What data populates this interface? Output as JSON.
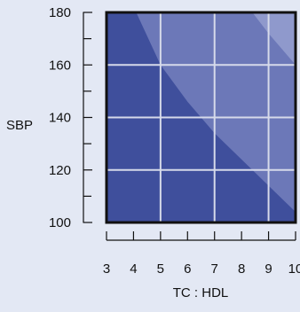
{
  "chart_data": {
    "type": "heatmap",
    "title": "",
    "xlabel": "TC : HDL",
    "ylabel": "SBP",
    "xlim": [
      3,
      10
    ],
    "ylim": [
      100,
      180
    ],
    "x_ticks": [
      3,
      4,
      5,
      6,
      7,
      8,
      9,
      10
    ],
    "x_tick_labels": [
      "3",
      "4",
      "5",
      "6",
      "7",
      "8",
      "9",
      "10"
    ],
    "y_ticks": [
      100,
      120,
      140,
      160,
      180
    ],
    "y_tick_labels": [
      "100",
      "120",
      "140",
      "160",
      "180"
    ],
    "y_minor_ticks": [
      110,
      130,
      150,
      170
    ],
    "grid": true,
    "grid_x": [
      5,
      7,
      9
    ],
    "grid_y": [
      120,
      140,
      160
    ],
    "regions": [
      {
        "level": 1,
        "color": "#3f4f9c",
        "boundary": []
      },
      {
        "level": 2,
        "color": "#6c78b8",
        "boundary": [
          [
            4.1,
            180
          ],
          [
            5,
            160
          ],
          [
            6,
            146
          ],
          [
            7,
            134
          ],
          [
            8,
            124
          ],
          [
            9,
            114
          ],
          [
            10,
            104
          ]
        ]
      },
      {
        "level": 3,
        "color": "#8f99cc",
        "boundary": [
          [
            8.4,
            180
          ],
          [
            9,
            172
          ],
          [
            9.5,
            166
          ],
          [
            10,
            160
          ]
        ]
      }
    ],
    "colors": {
      "background": "#e3e8f4",
      "frame": "#111111",
      "grid": "#d6daea"
    }
  }
}
